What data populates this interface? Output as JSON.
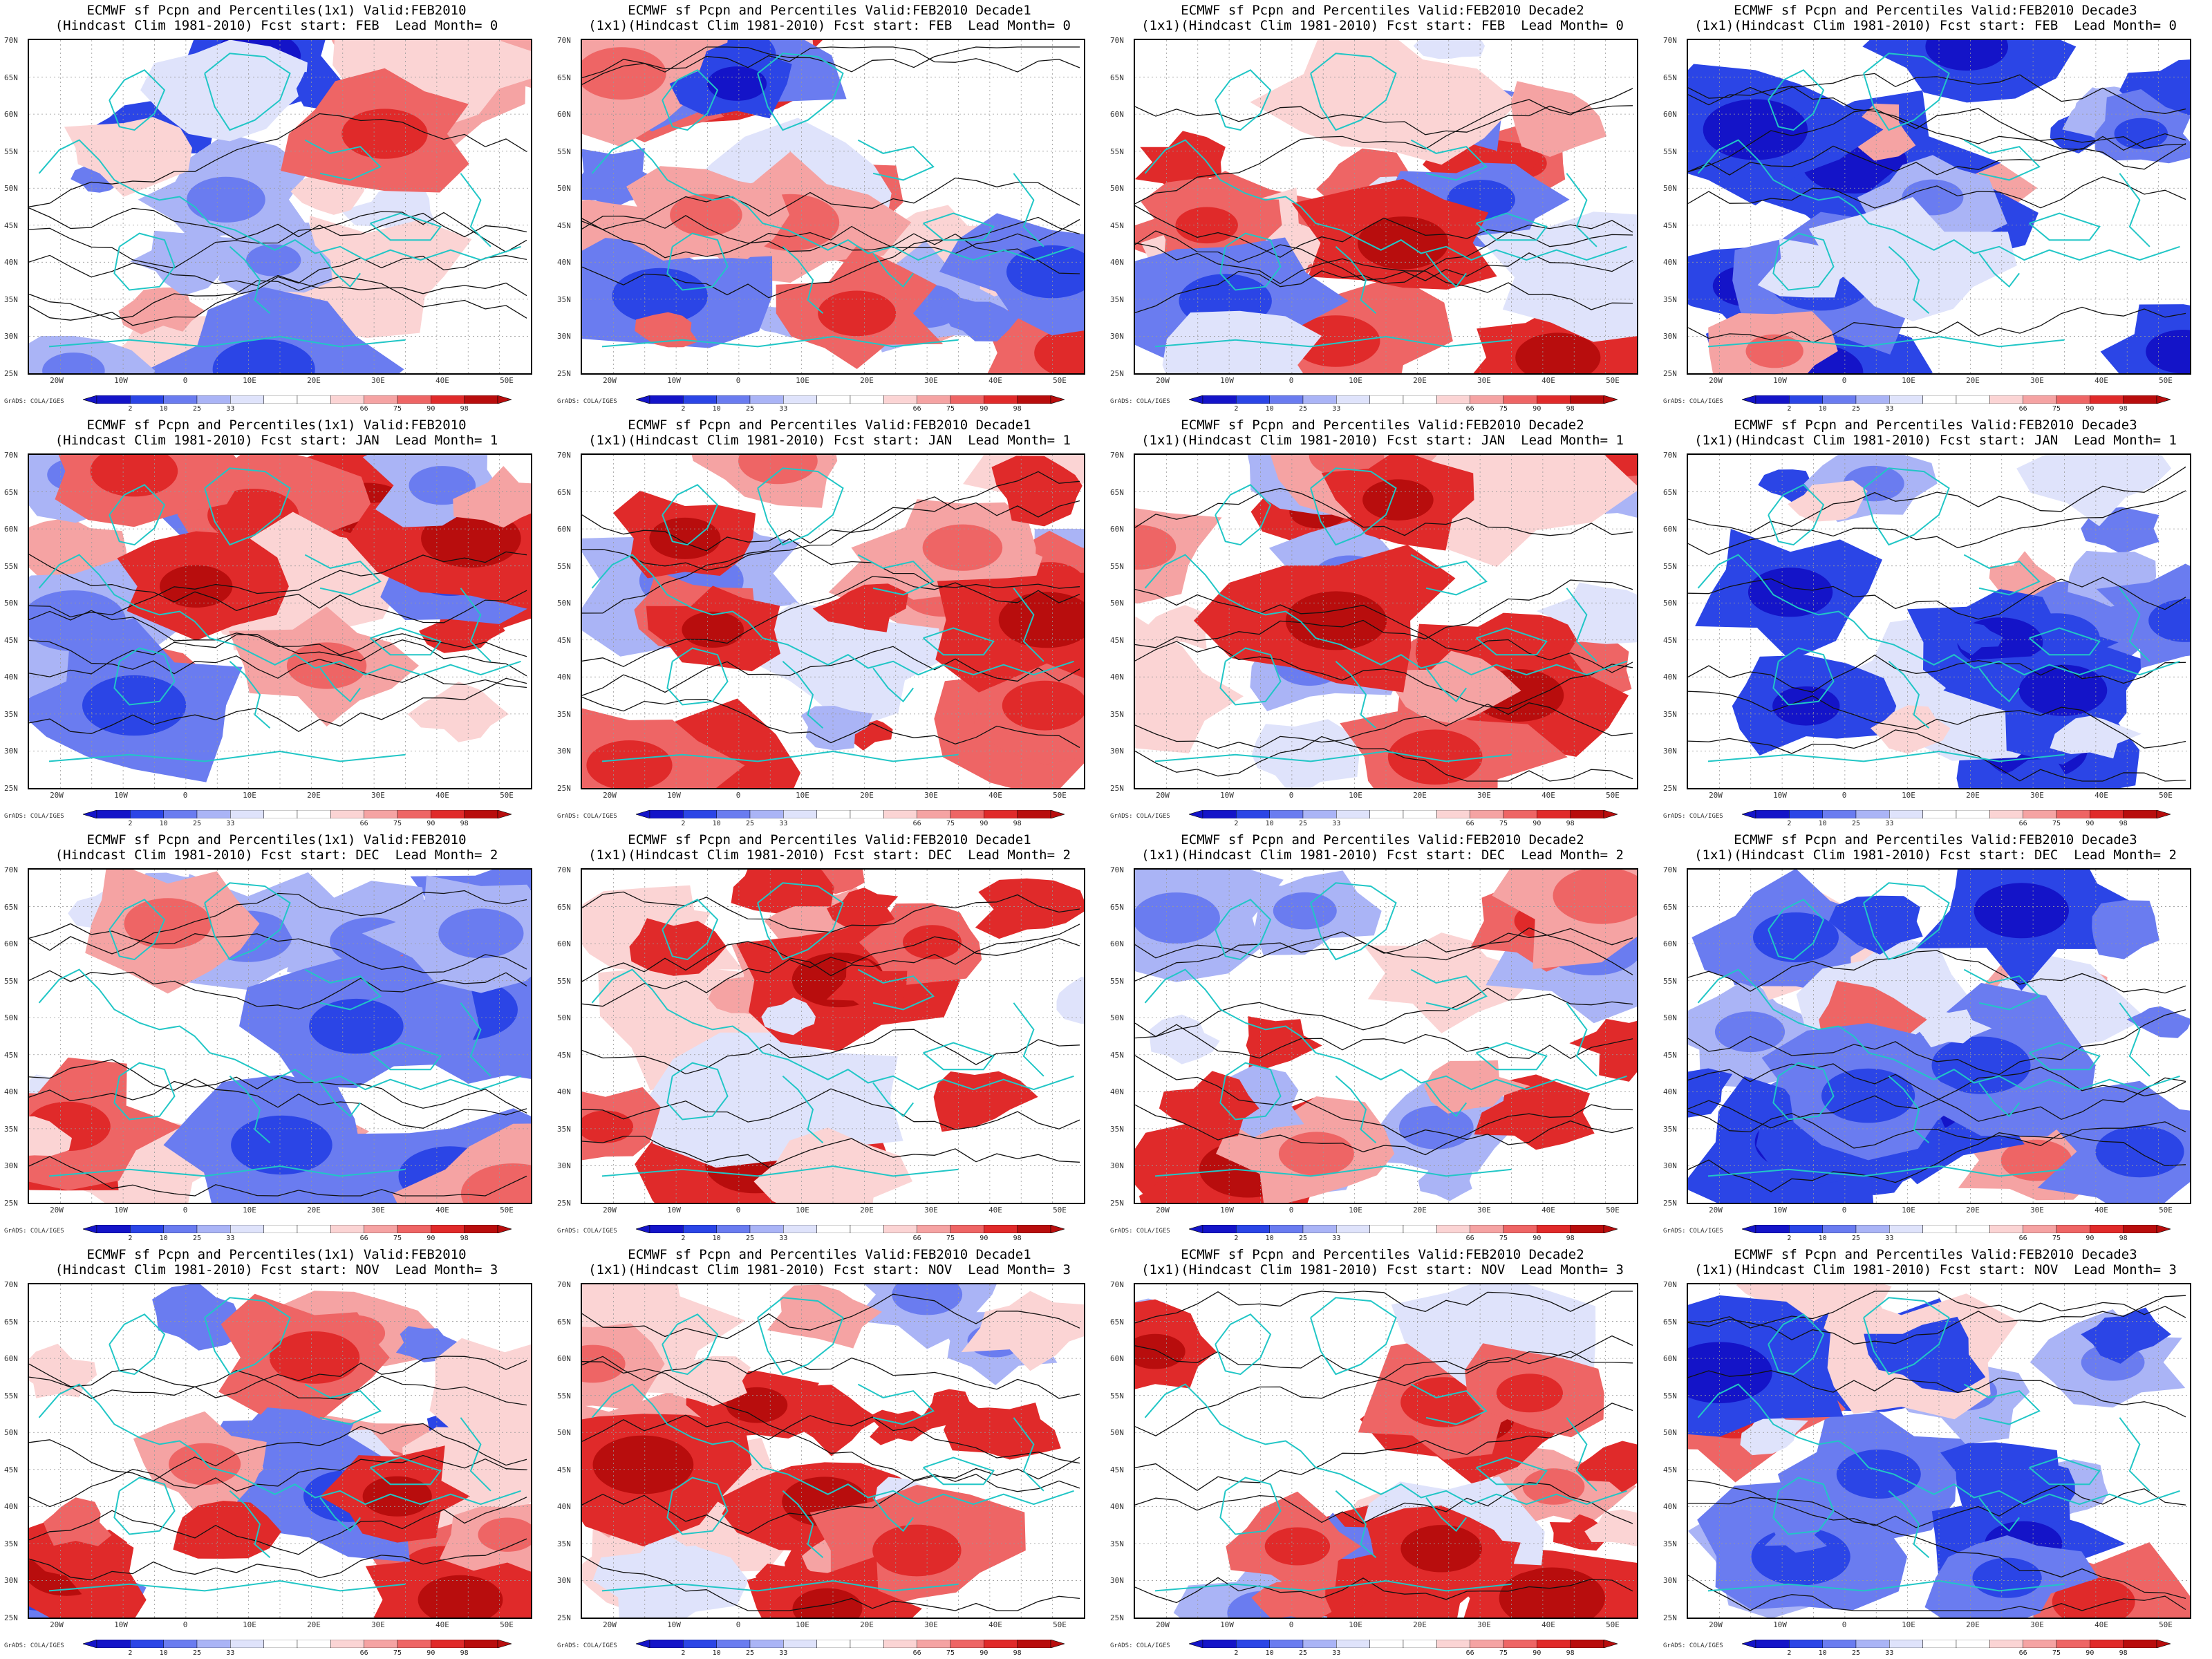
{
  "colorbar": {
    "labels": [
      "2",
      "10",
      "25",
      "33",
      "66",
      "75",
      "90",
      "98"
    ],
    "colors": [
      "#1414c8",
      "#2b45e6",
      "#6a7cf0",
      "#aab4f6",
      "#dfe3fb",
      "#ffffff",
      "#ffffff",
      "#fbd4d4",
      "#f5a3a3",
      "#ee6565",
      "#e02a2a",
      "#b80d0d"
    ],
    "credit": "GrADS: COLA/IGES"
  },
  "axes": {
    "lat_labels": [
      "70N",
      "65N",
      "60N",
      "55N",
      "50N",
      "45N",
      "40N",
      "35N",
      "30N",
      "25N"
    ],
    "lon_labels": [
      "20W",
      "10W",
      "0",
      "10E",
      "20E",
      "30E",
      "40E",
      "50E"
    ]
  },
  "panels": [
    {
      "title1": "ECMWF sf Pcpn and Percentiles(1x1) Valid:FEB2010",
      "title2": "(Hindcast Clim 1981-2010) Fcst start: FEB  Lead Month= 0",
      "anomaly": -0.15,
      "seed": 11
    },
    {
      "title1": "ECMWF sf Pcpn and Percentiles Valid:FEB2010 Decade1",
      "title2": "(1x1)(Hindcast Clim 1981-2010) Fcst start: FEB  Lead Month= 0",
      "anomaly": 0.05,
      "seed": 23
    },
    {
      "title1": "ECMWF sf Pcpn and Percentiles Valid:FEB2010 Decade2",
      "title2": "(1x1)(Hindcast Clim 1981-2010) Fcst start: FEB  Lead Month= 0",
      "anomaly": 0.1,
      "seed": 37
    },
    {
      "title1": "ECMWF sf Pcpn and Percentiles Valid:FEB2010 Decade3",
      "title2": "(1x1)(Hindcast Clim 1981-2010) Fcst start: FEB  Lead Month= 0",
      "anomaly": -0.35,
      "seed": 41
    },
    {
      "title1": "ECMWF sf Pcpn and Percentiles(1x1) Valid:FEB2010",
      "title2": "(Hindcast Clim 1981-2010) Fcst start: JAN  Lead Month= 1",
      "anomaly": 0.15,
      "seed": 53
    },
    {
      "title1": "ECMWF sf Pcpn and Percentiles Valid:FEB2010 Decade1",
      "title2": "(1x1)(Hindcast Clim 1981-2010) Fcst start: JAN  Lead Month= 1",
      "anomaly": 0.35,
      "seed": 67
    },
    {
      "title1": "ECMWF sf Pcpn and Percentiles Valid:FEB2010 Decade2",
      "title2": "(1x1)(Hindcast Clim 1981-2010) Fcst start: JAN  Lead Month= 1",
      "anomaly": 0.25,
      "seed": 71
    },
    {
      "title1": "ECMWF sf Pcpn and Percentiles Valid:FEB2010 Decade3",
      "title2": "(1x1)(Hindcast Clim 1981-2010) Fcst start: JAN  Lead Month= 1",
      "anomaly": -0.25,
      "seed": 83
    },
    {
      "title1": "ECMWF sf Pcpn and Percentiles(1x1) Valid:FEB2010",
      "title2": "(Hindcast Clim 1981-2010) Fcst start: DEC  Lead Month= 2",
      "anomaly": 0.1,
      "seed": 97
    },
    {
      "title1": "ECMWF sf Pcpn and Percentiles Valid:FEB2010 Decade1",
      "title2": "(1x1)(Hindcast Clim 1981-2010) Fcst start: DEC  Lead Month= 2",
      "anomaly": 0.45,
      "seed": 101
    },
    {
      "title1": "ECMWF sf Pcpn and Percentiles Valid:FEB2010 Decade2",
      "title2": "(1x1)(Hindcast Clim 1981-2010) Fcst start: DEC  Lead Month= 2",
      "anomaly": 0.3,
      "seed": 113
    },
    {
      "title1": "ECMWF sf Pcpn and Percentiles Valid:FEB2010 Decade3",
      "title2": "(1x1)(Hindcast Clim 1981-2010) Fcst start: DEC  Lead Month= 2",
      "anomaly": -0.2,
      "seed": 127
    },
    {
      "title1": "ECMWF sf Pcpn and Percentiles(1x1) Valid:FEB2010",
      "title2": "(Hindcast Clim 1981-2010) Fcst start: NOV  Lead Month= 3",
      "anomaly": 0.1,
      "seed": 131
    },
    {
      "title1": "ECMWF sf Pcpn and Percentiles Valid:FEB2010 Decade1",
      "title2": "(1x1)(Hindcast Clim 1981-2010) Fcst start: NOV  Lead Month= 3",
      "anomaly": 0.35,
      "seed": 149
    },
    {
      "title1": "ECMWF sf Pcpn and Percentiles Valid:FEB2010 Decade2",
      "title2": "(1x1)(Hindcast Clim 1981-2010) Fcst start: NOV  Lead Month= 3",
      "anomaly": 0.2,
      "seed": 151
    },
    {
      "title1": "ECMWF sf Pcpn and Percentiles Valid:FEB2010 Decade3",
      "title2": "(1x1)(Hindcast Clim 1981-2010) Fcst start: NOV  Lead Month= 3",
      "anomaly": -0.1,
      "seed": 163
    }
  ]
}
